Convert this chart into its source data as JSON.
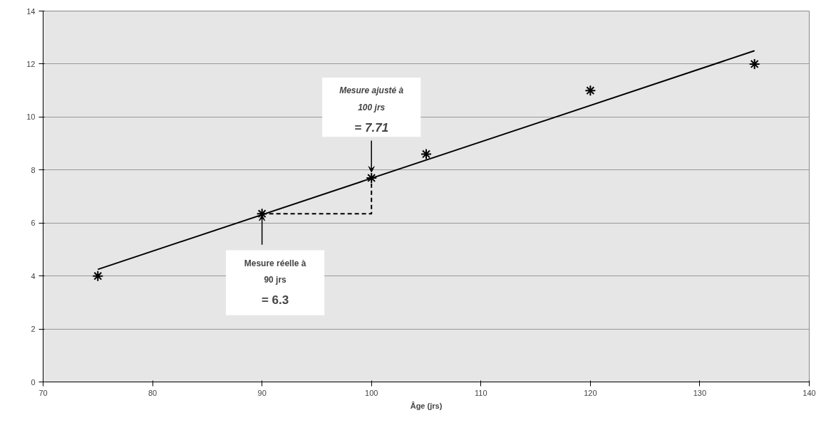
{
  "chart_data": {
    "type": "scatter",
    "xlabel": "Âge (jrs)",
    "xlim": [
      70,
      140
    ],
    "xticks": [
      70,
      80,
      90,
      100,
      110,
      120,
      130,
      140
    ],
    "ylim": [
      0,
      14
    ],
    "yticks": [
      0,
      2,
      4,
      6,
      8,
      10,
      12,
      14
    ],
    "grid": "y",
    "marker": "cross",
    "series": [
      {
        "color": "#000000",
        "x": [
          75,
          90,
          100,
          105,
          120,
          135
        ],
        "values": [
          4.0,
          6.35,
          7.7,
          8.6,
          11.0,
          12.0
        ]
      },
      {
        "type": "line",
        "color": "#000000",
        "x": [
          75,
          135
        ],
        "values": [
          4.25,
          12.5
        ],
        "marker": "none"
      },
      {
        "type": "line",
        "color": "#000000",
        "x": [
          90,
          100,
          100
        ],
        "values": [
          6.35,
          6.35,
          7.7
        ],
        "marker": "none",
        "line_style": "dashed"
      }
    ],
    "annotations": [
      {
        "text": "Mesure ajusté à\n100 jrs\n= 7.71",
        "x": 100,
        "y": 7.71
      },
      {
        "text": "Mesure réelle à\n90 jrs\n= 6.3",
        "x": 90,
        "y": 6.3
      }
    ]
  }
}
